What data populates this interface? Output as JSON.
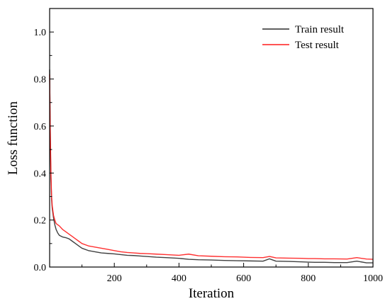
{
  "chart_data": {
    "type": "line",
    "xlabel": "Iteration",
    "ylabel": "Loss function",
    "xlim": [
      0,
      1000
    ],
    "ylim": [
      0,
      1.1
    ],
    "x_ticks": [
      200,
      400,
      600,
      800,
      1000
    ],
    "y_ticks": [
      0.0,
      0.2,
      0.4,
      0.6,
      0.8,
      1.0
    ],
    "x_tick_labels": [
      "200",
      "400",
      "600",
      "800",
      "1000"
    ],
    "y_tick_labels": [
      "0.0",
      "0.2",
      "0.4",
      "0.6",
      "0.8",
      "1.0"
    ],
    "grid": false,
    "legend_position": "top-right",
    "series": [
      {
        "name": "Train result",
        "color": "#2b2b2b",
        "x": [
          0,
          2,
          4,
          6,
          8,
          10,
          12,
          16,
          20,
          25,
          30,
          40,
          50,
          60,
          70,
          80,
          90,
          100,
          120,
          140,
          160,
          180,
          200,
          220,
          240,
          260,
          280,
          300,
          330,
          360,
          400,
          430,
          460,
          500,
          540,
          580,
          620,
          660,
          680,
          700,
          740,
          780,
          800,
          820,
          850,
          880,
          920,
          950,
          980,
          1000
        ],
        "y": [
          0.84,
          0.55,
          0.38,
          0.29,
          0.25,
          0.23,
          0.21,
          0.18,
          0.16,
          0.145,
          0.135,
          0.128,
          0.125,
          0.12,
          0.11,
          0.1,
          0.09,
          0.08,
          0.07,
          0.065,
          0.06,
          0.058,
          0.056,
          0.053,
          0.05,
          0.049,
          0.047,
          0.045,
          0.042,
          0.04,
          0.037,
          0.033,
          0.031,
          0.03,
          0.028,
          0.027,
          0.026,
          0.025,
          0.035,
          0.025,
          0.024,
          0.022,
          0.021,
          0.02,
          0.02,
          0.019,
          0.019,
          0.025,
          0.018,
          0.018
        ]
      },
      {
        "name": "Test result",
        "color": "#ff1a1a",
        "x": [
          0,
          2,
          4,
          6,
          8,
          10,
          12,
          16,
          20,
          25,
          30,
          40,
          50,
          60,
          70,
          80,
          90,
          100,
          120,
          140,
          160,
          180,
          200,
          220,
          240,
          260,
          280,
          300,
          330,
          360,
          400,
          430,
          460,
          500,
          540,
          580,
          620,
          660,
          680,
          700,
          740,
          780,
          800,
          820,
          850,
          880,
          920,
          950,
          980,
          1000
        ],
        "y": [
          0.82,
          0.58,
          0.4,
          0.3,
          0.26,
          0.24,
          0.22,
          0.2,
          0.185,
          0.18,
          0.175,
          0.16,
          0.15,
          0.14,
          0.13,
          0.12,
          0.11,
          0.1,
          0.09,
          0.085,
          0.08,
          0.075,
          0.07,
          0.065,
          0.062,
          0.06,
          0.058,
          0.057,
          0.055,
          0.053,
          0.05,
          0.055,
          0.048,
          0.046,
          0.044,
          0.043,
          0.041,
          0.04,
          0.045,
          0.039,
          0.038,
          0.037,
          0.036,
          0.036,
          0.035,
          0.035,
          0.034,
          0.04,
          0.034,
          0.033
        ]
      }
    ]
  }
}
